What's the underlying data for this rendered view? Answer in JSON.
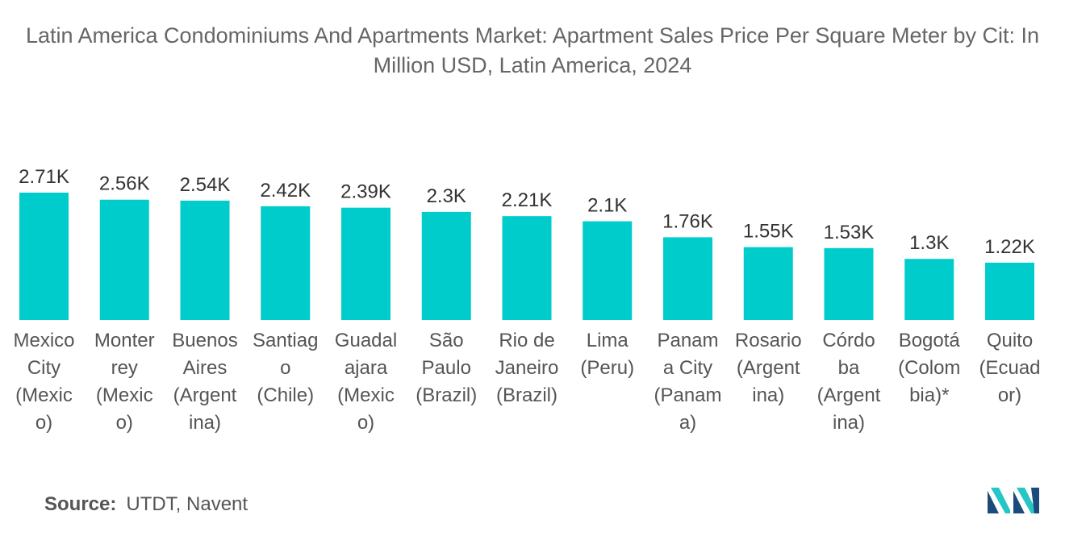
{
  "title": "Latin America Condominiums And Apartments Market: Apartment Sales Price Per Square Meter by Cit: In Million USD, Latin America, 2024",
  "chart_data": {
    "type": "bar",
    "title": "Latin America Condominiums And Apartments Market: Apartment Sales Price Per Square Meter by Cit: In Million USD, Latin America, 2024",
    "categories": [
      "Mexico City (Mexico)",
      "Monterrey (Mexico)",
      "Buenos Aires (Argentina)",
      "Santiago (Chile)",
      "Guadalajara (Mexico)",
      "São Paulo (Brazil)",
      "Rio de Janeiro (Brazil)",
      "Lima (Peru)",
      "Panama City (Panama)",
      "Rosario (Argentina)",
      "Córdoba (Argentina)",
      "Bogotá (Colombia)*",
      "Quito (Ecuador)"
    ],
    "category_lines": [
      [
        "Mexico",
        "City",
        "(Mexic",
        "o)"
      ],
      [
        "Monter",
        "rey",
        "(Mexic",
        "o)"
      ],
      [
        "Buenos",
        "Aires",
        "(Argent",
        "ina)"
      ],
      [
        "Santiag",
        "o",
        "(Chile)"
      ],
      [
        "Guadal",
        "ajara",
        "(Mexic",
        "o)"
      ],
      [
        "São",
        "Paulo",
        "(Brazil)"
      ],
      [
        "Rio de",
        "Janeiro",
        "(Brazil)"
      ],
      [
        "Lima",
        "(Peru)"
      ],
      [
        "Panam",
        "a City",
        "(Panam",
        "a)"
      ],
      [
        "Rosario",
        "(Argent",
        "ina)"
      ],
      [
        "Córdo",
        "ba",
        "(Argent",
        "ina)"
      ],
      [
        "Bogotá",
        "(Colom",
        "bia)*"
      ],
      [
        "Quito",
        "(Ecuad",
        "or)"
      ]
    ],
    "values": [
      2710,
      2560,
      2540,
      2420,
      2390,
      2300,
      2210,
      2100,
      1760,
      1550,
      1530,
      1300,
      1220
    ],
    "value_labels": [
      "2.71K",
      "2.56K",
      "2.54K",
      "2.42K",
      "2.39K",
      "2.3K",
      "2.21K",
      "2.1K",
      "1.76K",
      "1.55K",
      "1.53K",
      "1.3K",
      "1.22K"
    ],
    "xlabel": "",
    "ylabel": "",
    "ylim": [
      0,
      2710
    ],
    "grid": false,
    "bar_color": "#00cccc"
  },
  "source": {
    "label": "Source:",
    "text": "UTDT, Navent"
  },
  "logo": {
    "icon": "mordor-intelligence-logo-icon",
    "colors": [
      "#1a4b7a",
      "#26c6c6"
    ]
  }
}
